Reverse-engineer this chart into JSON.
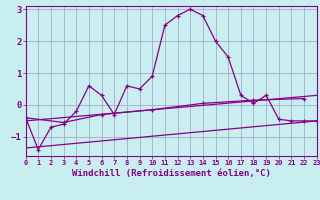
{
  "xlabel": "Windchill (Refroidissement éolien,°C)",
  "background_color": "#c8eef0",
  "grid_color": "#aaaacc",
  "line_color": "#880088",
  "x_ticks": [
    0,
    1,
    2,
    3,
    4,
    5,
    6,
    7,
    8,
    9,
    10,
    11,
    12,
    13,
    14,
    15,
    16,
    17,
    18,
    19,
    20,
    21,
    22,
    23
  ],
  "ylim": [
    -1.6,
    3.1
  ],
  "xlim": [
    0,
    23
  ],
  "line1_x": [
    0,
    1,
    2,
    3,
    4,
    5,
    6,
    7,
    8,
    9,
    10,
    11,
    12,
    13,
    14,
    15,
    16,
    17,
    18,
    19,
    20,
    21,
    22,
    23
  ],
  "line1_y": [
    -0.4,
    -1.4,
    -0.7,
    -0.6,
    -0.2,
    0.6,
    0.3,
    -0.3,
    0.6,
    0.5,
    0.9,
    2.5,
    2.8,
    3.0,
    2.8,
    2.0,
    1.5,
    0.3,
    0.05,
    0.3,
    -0.45,
    -0.5,
    -0.5,
    -0.5
  ],
  "line2_x": [
    0,
    3,
    6,
    10,
    14,
    18,
    22
  ],
  "line2_y": [
    -0.4,
    -0.55,
    -0.3,
    -0.15,
    0.05,
    0.15,
    0.2
  ],
  "line3_x": [
    0,
    23
  ],
  "line3_y": [
    -0.5,
    0.3
  ],
  "line4_x": [
    0,
    23
  ],
  "line4_y": [
    -1.35,
    -0.5
  ],
  "ytick_fontsize": 6.5,
  "xtick_fontsize": 5.0,
  "xlabel_fontsize": 6.5
}
